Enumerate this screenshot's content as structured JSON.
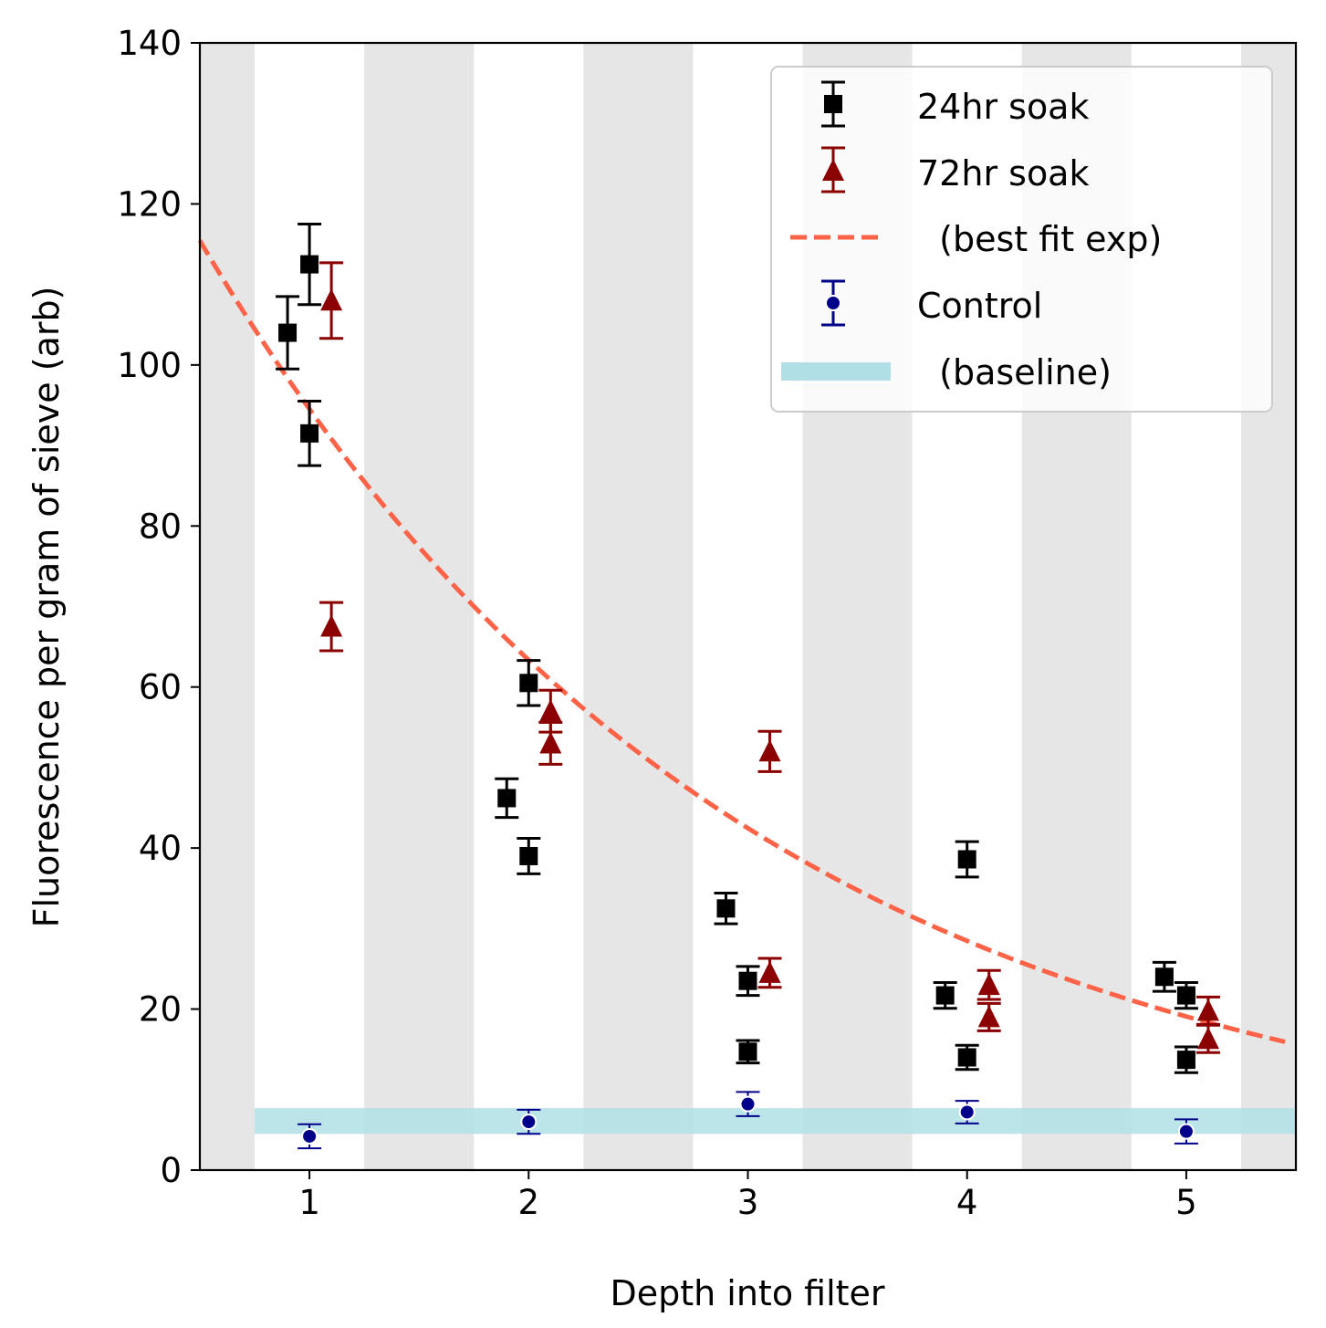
{
  "chart_data": {
    "type": "scatter",
    "title": "",
    "xlabel": "Depth into filter",
    "ylabel": "Fluorescence per gram of sieve (arb)",
    "xlim": [
      0.5,
      5.5
    ],
    "ylim": [
      0,
      140
    ],
    "xticks": [
      1,
      2,
      3,
      4,
      5
    ],
    "yticks": [
      0,
      20,
      40,
      60,
      80,
      100,
      120,
      140
    ],
    "grid": false,
    "legend_position": "top-right",
    "bands": [
      [
        0.5,
        0.75
      ],
      [
        1.25,
        1.75
      ],
      [
        2.25,
        2.75
      ],
      [
        3.25,
        3.75
      ],
      [
        4.25,
        4.75
      ],
      [
        5.25,
        5.5
      ]
    ],
    "series": [
      {
        "name": "24hr soak",
        "marker": "square",
        "color": "#000000",
        "points": [
          {
            "x": 0.9,
            "y": 104.0,
            "err": 4.5
          },
          {
            "x": 1.0,
            "y": 112.5,
            "err": 5.0
          },
          {
            "x": 1.0,
            "y": 91.5,
            "err": 4.0
          },
          {
            "x": 1.9,
            "y": 46.2,
            "err": 2.4
          },
          {
            "x": 2.0,
            "y": 60.5,
            "err": 2.8
          },
          {
            "x": 2.0,
            "y": 39.0,
            "err": 2.2
          },
          {
            "x": 2.9,
            "y": 32.5,
            "err": 1.9
          },
          {
            "x": 3.0,
            "y": 23.5,
            "err": 1.8
          },
          {
            "x": 3.0,
            "y": 14.7,
            "err": 1.4
          },
          {
            "x": 3.9,
            "y": 21.7,
            "err": 1.6
          },
          {
            "x": 4.0,
            "y": 38.6,
            "err": 2.2
          },
          {
            "x": 4.0,
            "y": 14.0,
            "err": 1.5
          },
          {
            "x": 4.9,
            "y": 24.0,
            "err": 1.8
          },
          {
            "x": 5.0,
            "y": 21.7,
            "err": 1.6
          },
          {
            "x": 5.0,
            "y": 13.7,
            "err": 1.6
          }
        ]
      },
      {
        "name": "72hr soak",
        "marker": "triangle",
        "color": "#8b0000",
        "points": [
          {
            "x": 1.1,
            "y": 108.0,
            "err": 4.7
          },
          {
            "x": 1.1,
            "y": 67.5,
            "err": 3.0
          },
          {
            "x": 2.1,
            "y": 57.0,
            "err": 2.6
          },
          {
            "x": 2.1,
            "y": 53.0,
            "err": 2.6
          },
          {
            "x": 3.1,
            "y": 52.0,
            "err": 2.5
          },
          {
            "x": 3.1,
            "y": 24.5,
            "err": 1.8
          },
          {
            "x": 4.1,
            "y": 23.0,
            "err": 1.8
          },
          {
            "x": 4.1,
            "y": 19.0,
            "err": 1.7
          },
          {
            "x": 5.1,
            "y": 19.8,
            "err": 1.7
          },
          {
            "x": 5.1,
            "y": 16.3,
            "err": 1.7
          }
        ]
      },
      {
        "name": "Control",
        "marker": "circle",
        "color": "#00008b",
        "points": [
          {
            "x": 1.0,
            "y": 4.2,
            "err": 1.5
          },
          {
            "x": 2.0,
            "y": 6.0,
            "err": 1.5
          },
          {
            "x": 3.0,
            "y": 8.2,
            "err": 1.5
          },
          {
            "x": 4.0,
            "y": 7.2,
            "err": 1.4
          },
          {
            "x": 5.0,
            "y": 4.8,
            "err": 1.5
          }
        ]
      }
    ],
    "fit": {
      "name": "  (best fit exp)",
      "color": "#ff6347",
      "amplitude": 141.0,
      "decay_rate": 0.4,
      "x_range": [
        0.5,
        5.45
      ]
    },
    "baseline": {
      "name": "  (baseline)",
      "color": "#b0e0e6",
      "y_low": 4.5,
      "y_high": 7.7,
      "x_start": 0.75
    }
  },
  "colors": {
    "band": "#e6e6e6",
    "fit": "#ff6347",
    "baseline": "#b0e0e6",
    "s24": "#000000",
    "s72": "#8b0000",
    "control": "#00008b"
  }
}
